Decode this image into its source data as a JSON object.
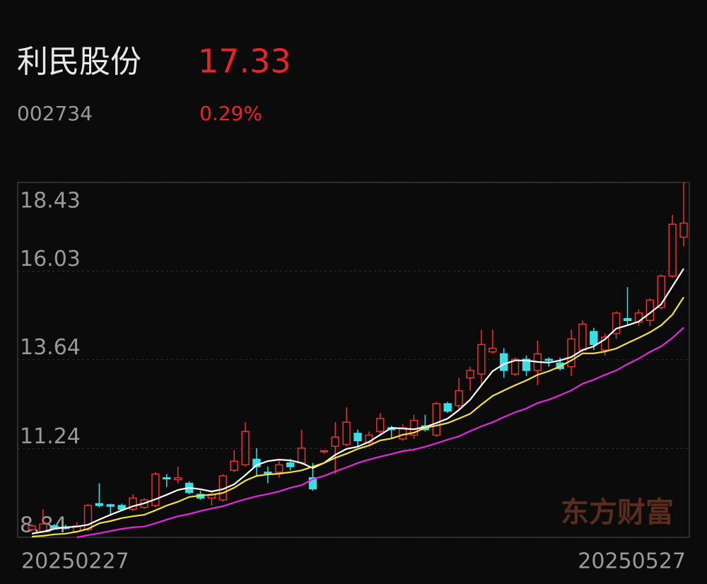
{
  "header": {
    "name": "利民股份",
    "price": "17.33",
    "code": "002734",
    "change": "0.29%"
  },
  "watermark": "东方财富",
  "chart_data": {
    "type": "candlestick",
    "categories": [
      "20250227",
      null,
      null,
      null,
      null,
      null,
      null,
      null,
      null,
      null,
      null,
      null,
      null,
      null,
      null,
      null,
      null,
      null,
      null,
      null,
      null,
      null,
      null,
      null,
      null,
      null,
      null,
      null,
      null,
      null,
      null,
      null,
      null,
      null,
      null,
      null,
      null,
      null,
      null,
      null,
      null,
      null,
      null,
      null,
      null,
      null,
      null,
      null,
      null,
      null,
      null,
      null,
      null,
      null,
      null,
      null,
      null,
      null,
      "20250527"
    ],
    "open": [
      9.05,
      9.0,
      9.15,
      9.12,
      9.0,
      9.05,
      9.75,
      9.72,
      9.7,
      9.6,
      9.65,
      9.7,
      10.45,
      10.4,
      10.3,
      10.0,
      9.9,
      9.85,
      10.65,
      10.8,
      10.95,
      10.6,
      10.6,
      10.85,
      10.85,
      10.45,
      11.15,
      11.3,
      11.35,
      11.65,
      11.4,
      11.7,
      11.8,
      11.5,
      11.6,
      11.85,
      11.6,
      12.45,
      12.4,
      13.15,
      13.25,
      13.85,
      13.8,
      13.25,
      13.65,
      13.35,
      13.65,
      13.55,
      13.45,
      13.9,
      14.4,
      13.9,
      14.35,
      14.75,
      14.65,
      14.7,
      15.05,
      15.9,
      16.95
    ],
    "high": [
      9.2,
      9.6,
      9.2,
      9.18,
      9.25,
      9.75,
      10.3,
      9.75,
      9.75,
      10.0,
      9.9,
      10.6,
      10.55,
      10.75,
      10.35,
      10.1,
      10.1,
      10.55,
      11.2,
      11.95,
      11.25,
      10.75,
      10.9,
      10.95,
      11.75,
      10.85,
      11.2,
      11.95,
      12.35,
      11.75,
      11.7,
      12.2,
      11.85,
      11.9,
      12.15,
      12.15,
      12.5,
      12.5,
      13.15,
      13.45,
      14.45,
      14.45,
      13.95,
      13.7,
      13.75,
      14.15,
      13.7,
      13.7,
      14.45,
      14.7,
      14.5,
      14.35,
      14.95,
      15.6,
      15.0,
      15.3,
      15.95,
      17.55,
      18.43
    ],
    "low": [
      9.0,
      8.95,
      9.05,
      9.05,
      8.95,
      9.0,
      9.65,
      9.45,
      9.55,
      9.55,
      9.6,
      9.65,
      10.2,
      10.3,
      10.0,
      9.85,
      9.7,
      9.8,
      10.6,
      10.75,
      10.5,
      10.3,
      10.45,
      10.65,
      10.8,
      10.1,
      11.1,
      10.55,
      11.3,
      11.3,
      11.35,
      11.6,
      11.5,
      11.45,
      11.5,
      11.7,
      11.55,
      12.2,
      12.3,
      12.8,
      12.95,
      13.8,
      13.15,
      13.2,
      13.2,
      12.95,
      13.45,
      13.35,
      13.2,
      13.85,
      13.9,
      13.75,
      14.2,
      14.6,
      14.55,
      14.55,
      15.0,
      15.85,
      16.7
    ],
    "close": [
      9.15,
      9.2,
      9.1,
      9.08,
      9.15,
      9.7,
      9.7,
      9.68,
      9.6,
      9.9,
      9.85,
      10.55,
      10.42,
      10.45,
      10.05,
      9.9,
      10.0,
      10.5,
      10.9,
      11.7,
      10.75,
      10.58,
      10.8,
      10.75,
      11.25,
      10.15,
      11.18,
      11.55,
      11.95,
      11.45,
      11.6,
      12.05,
      11.75,
      11.8,
      12.0,
      11.75,
      12.45,
      12.25,
      12.8,
      13.35,
      14.05,
      13.95,
      13.35,
      13.65,
      13.35,
      13.8,
      13.63,
      13.4,
      14.2,
      14.6,
      14.05,
      14.25,
      14.9,
      14.7,
      14.9,
      15.25,
      15.9,
      17.3,
      17.33
    ],
    "up_color": "#e8332e",
    "down_color": "#36e0e6",
    "lines": [
      {
        "color": "#ffffff",
        "values": [
          8.94,
          8.99,
          9.07,
          9.11,
          9.13,
          9.18,
          9.32,
          9.45,
          9.57,
          9.68,
          9.76,
          9.87,
          9.99,
          10.12,
          10.18,
          10.14,
          10.08,
          10.14,
          10.27,
          10.52,
          10.79,
          10.9,
          10.94,
          10.92,
          10.85,
          10.71,
          10.85,
          11.07,
          11.23,
          11.29,
          11.42,
          11.61,
          11.8,
          11.78,
          11.76,
          11.82,
          11.93,
          12.05,
          12.28,
          12.56,
          12.95,
          13.33,
          13.52,
          13.62,
          13.62,
          13.58,
          13.56,
          13.62,
          13.71,
          13.9,
          14.0,
          14.19,
          14.48,
          14.57,
          14.67,
          14.9,
          15.14,
          15.62,
          16.1
        ]
      },
      {
        "color": "#f2e23a",
        "values": [
          8.86,
          8.88,
          8.92,
          8.94,
          8.99,
          9.07,
          9.22,
          9.28,
          9.36,
          9.41,
          9.45,
          9.57,
          9.7,
          9.8,
          9.93,
          9.97,
          9.99,
          10.04,
          10.18,
          10.37,
          10.5,
          10.54,
          10.56,
          10.6,
          10.65,
          10.75,
          10.85,
          10.99,
          11.1,
          11.23,
          11.32,
          11.46,
          11.51,
          11.61,
          11.67,
          11.8,
          11.86,
          11.93,
          12.05,
          12.18,
          12.43,
          12.66,
          12.81,
          12.95,
          13.08,
          13.23,
          13.33,
          13.46,
          13.62,
          13.81,
          13.81,
          13.86,
          13.94,
          14.09,
          14.23,
          14.38,
          14.57,
          14.86,
          15.33
        ]
      },
      {
        "color": "#e426e0",
        "values": [
          null,
          null,
          null,
          null,
          8.84,
          8.9,
          8.95,
          9.01,
          9.07,
          9.11,
          9.13,
          9.22,
          9.32,
          9.41,
          9.47,
          9.55,
          9.62,
          9.68,
          9.78,
          9.87,
          9.95,
          10.01,
          10.08,
          10.18,
          10.25,
          10.41,
          10.5,
          10.62,
          10.73,
          10.85,
          10.94,
          11.02,
          11.09,
          11.17,
          11.21,
          11.29,
          11.38,
          11.48,
          11.57,
          11.71,
          11.84,
          11.95,
          12.09,
          12.22,
          12.32,
          12.47,
          12.56,
          12.68,
          12.81,
          12.99,
          13.1,
          13.23,
          13.35,
          13.52,
          13.67,
          13.85,
          14.0,
          14.23,
          14.51
        ]
      }
    ],
    "ylim": [
      8.84,
      18.43
    ],
    "yticks": [
      8.84,
      11.24,
      13.64,
      16.03,
      18.43
    ],
    "grid": true
  }
}
